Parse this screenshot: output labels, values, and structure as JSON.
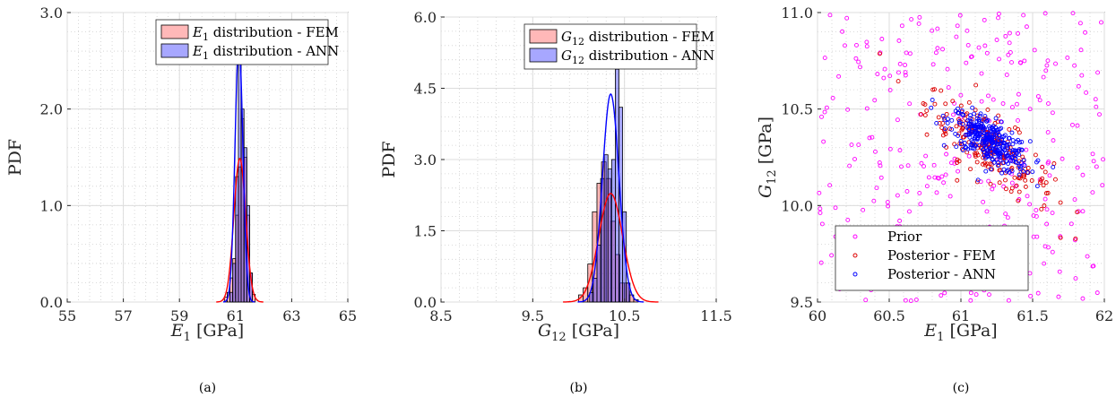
{
  "chart_data": [
    {
      "type": "histogram",
      "caption": "(a)",
      "xlabel": "E1 [GPa]",
      "xlabel_main": "E",
      "xlabel_sub": "1",
      "xlabel_unit": " [GPa]",
      "ylabel": "PDF",
      "xlim": [
        55,
        65
      ],
      "ylim": [
        0,
        3
      ],
      "xticks": [
        "55",
        "57",
        "59",
        "61",
        "63",
        "65"
      ],
      "xtick_values": [
        55,
        57,
        59,
        61,
        63,
        65
      ],
      "yticks": [
        "0.0",
        "1.0",
        "2.0",
        "3.0"
      ],
      "ytick_values": [
        0,
        1,
        2,
        3
      ],
      "grid": true,
      "legend_position": "top-right",
      "series": [
        {
          "name": "E1 distribution - FEM",
          "name_main": "E",
          "name_sub": "1",
          "name_rest": " distribution - FEM",
          "color": "#ff0000",
          "bin_width": 0.1,
          "bin_start": 60.6,
          "values": [
            0.05,
            0.1,
            0.25,
            0.45,
            0.9,
            1.4,
            1.9,
            1.5,
            0.9,
            0.3,
            0.08
          ],
          "curve_mean": 61.15,
          "curve_std": 0.21
        },
        {
          "name": "E1 distribution - ANN",
          "name_main": "E",
          "name_sub": "1",
          "name_rest": " distribution - ANN",
          "color": "#0000ff",
          "bin_width": 0.1,
          "bin_start": 60.8,
          "values": [
            0.1,
            0.4,
            1.3,
            2.75,
            2.0,
            1.6,
            1.0,
            0.3
          ],
          "curve_mean": 61.12,
          "curve_std": 0.14
        }
      ]
    },
    {
      "type": "histogram",
      "caption": "(b)",
      "xlabel": "G12 [GPa]",
      "xlabel_main": "G",
      "xlabel_sub": "12",
      "xlabel_unit": " [GPa]",
      "ylabel": "PDF",
      "xlim": [
        8.5,
        11.5
      ],
      "ylim": [
        0,
        6
      ],
      "xticks": [
        "8.5",
        "9.5",
        "10.5",
        "11.5"
      ],
      "xtick_values": [
        8.5,
        9.5,
        10.5,
        11.5
      ],
      "yticks": [
        "0.0",
        "1.5",
        "3.0",
        "4.5",
        "6.0"
      ],
      "ytick_values": [
        0,
        1.5,
        3,
        4.5,
        6
      ],
      "grid": true,
      "legend_position": "top-right",
      "series": [
        {
          "name": "G12 distribution - FEM",
          "name_main": "G",
          "name_sub": "12",
          "name_rest": " distribution - FEM",
          "color": "#ff0000",
          "bin_width": 0.05,
          "bin_start": 10.0,
          "values": [
            0.15,
            0.3,
            0.8,
            1.9,
            2.5,
            2.95,
            2.6,
            1.7,
            1.0,
            0.4,
            0.4,
            0.15,
            0.05
          ],
          "curve_mean": 10.35,
          "curve_std": 0.13
        },
        {
          "name": "G12 distribution - ANN",
          "name_main": "G",
          "name_sub": "12",
          "name_rest": " distribution - ANN",
          "color": "#0000ff",
          "bin_width": 0.04,
          "bin_start": 10.12,
          "values": [
            0.2,
            0.5,
            1.2,
            2.6,
            3.1,
            2.8,
            3.0,
            4.9,
            4.1,
            1.9,
            0.4
          ],
          "curve_mean": 10.35,
          "curve_std": 0.09
        }
      ]
    },
    {
      "type": "scatter",
      "caption": "(c)",
      "xlabel": "E1 [GPa]",
      "xlabel_main": "E",
      "xlabel_sub": "1",
      "xlabel_unit": " [GPa]",
      "ylabel": "G12 [GPa]",
      "ylabel_main": "G",
      "ylabel_sub": "12",
      "ylabel_unit": " [GPa]",
      "xlim": [
        60,
        62
      ],
      "ylim": [
        9.5,
        11
      ],
      "xticks": [
        "60",
        "60.5",
        "61",
        "61.5",
        "62"
      ],
      "xtick_values": [
        60,
        60.5,
        61,
        61.5,
        62
      ],
      "yticks": [
        "9.5",
        "10.0",
        "10.5",
        "11.0"
      ],
      "ytick_values": [
        9.5,
        10,
        10.5,
        11
      ],
      "grid": true,
      "legend_position": "bottom-left",
      "series": [
        {
          "name": "Prior",
          "color": "#ff00ff",
          "count": 300,
          "distribution": "uniform",
          "x_range": [
            60,
            62
          ],
          "y_range": [
            9.5,
            11
          ]
        },
        {
          "name": "Posterior - FEM",
          "color": "#dd0000",
          "count": 220,
          "distribution": "correlated",
          "x_mean": 61.2,
          "x_std": 0.22,
          "y_mean": 10.3,
          "y_std": 0.14,
          "correlation": -0.8
        },
        {
          "name": "Posterior - ANN",
          "color": "#0000ff",
          "count": 320,
          "distribution": "correlated",
          "x_mean": 61.2,
          "x_std": 0.14,
          "y_mean": 10.33,
          "y_std": 0.08,
          "correlation": -0.7
        }
      ]
    }
  ]
}
